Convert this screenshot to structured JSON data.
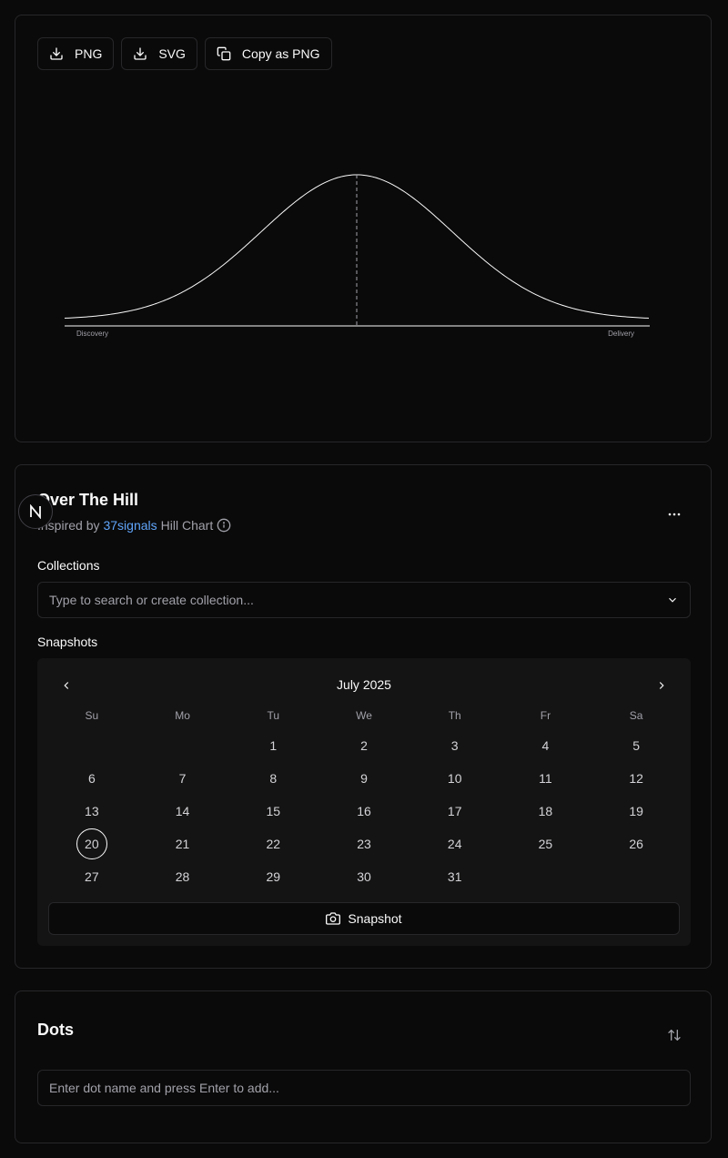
{
  "export": {
    "png_label": "PNG",
    "svg_label": "SVG",
    "copy_label": "Copy as PNG"
  },
  "hill": {
    "left_label": "Discovery",
    "right_label": "Delivery"
  },
  "info": {
    "title": "Over The Hill",
    "subtitle_prefix": "Inspired by",
    "subtitle_link": "37signals",
    "subtitle_suffix": "Hill Chart"
  },
  "collections": {
    "label": "Collections",
    "placeholder": "Type to search or create collection..."
  },
  "snapshots": {
    "label": "Snapshots",
    "month": "July 2025",
    "weekdays": [
      "Su",
      "Mo",
      "Tu",
      "We",
      "Th",
      "Fr",
      "Sa"
    ],
    "first_weekday": 2,
    "days": [
      "1",
      "2",
      "3",
      "4",
      "5",
      "6",
      "7",
      "8",
      "9",
      "10",
      "11",
      "12",
      "13",
      "14",
      "15",
      "16",
      "17",
      "18",
      "19",
      "20",
      "21",
      "22",
      "23",
      "24",
      "25",
      "26",
      "27",
      "28",
      "29",
      "30",
      "31"
    ],
    "selected_day": "20",
    "button_label": "Snapshot"
  },
  "dots": {
    "title": "Dots",
    "input_placeholder": "Enter dot name and press Enter to add..."
  },
  "colors": {
    "background": "#0a0a0a",
    "border": "#27272a",
    "link": "#60a5fa",
    "muted": "#a1a1aa"
  }
}
